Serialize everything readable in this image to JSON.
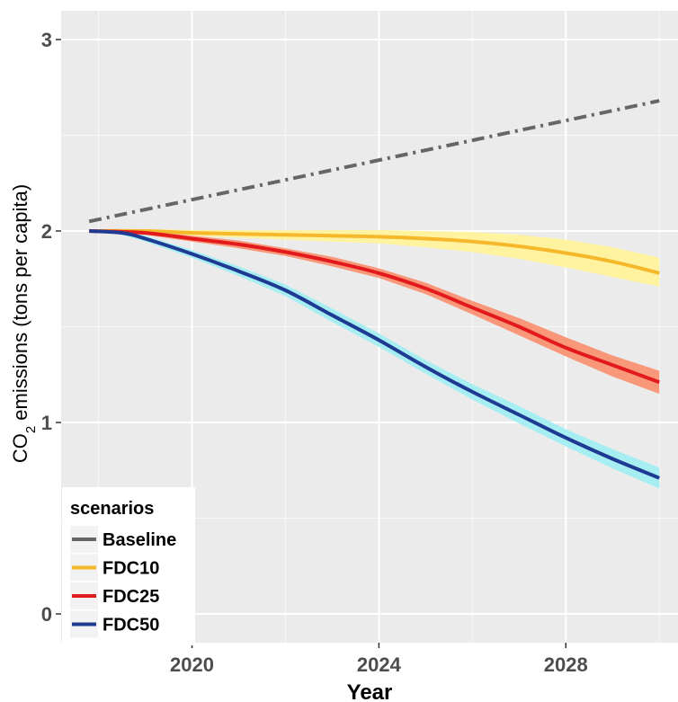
{
  "chart_data": {
    "type": "line",
    "xlabel": "Year",
    "ylabel_prefix": "CO",
    "ylabel_sub": "2",
    "ylabel_suffix": " emissions (tons per capita)",
    "xlim": [
      2017.2,
      2030.4
    ],
    "ylim": [
      -0.15,
      3.15
    ],
    "x_ticks": [
      2020,
      2024,
      2028
    ],
    "x_tick_labels": [
      "2020",
      "2024",
      "2028"
    ],
    "y_ticks": [
      0,
      1,
      2,
      3
    ],
    "y_tick_labels": [
      "0",
      "1",
      "2",
      "3"
    ],
    "grid": true,
    "legend": {
      "title": "scenarios",
      "position": "bottom-left",
      "entries": [
        "Baseline",
        "FDC10",
        "FDC25",
        "FDC50"
      ]
    },
    "series": [
      {
        "name": "Baseline",
        "color": "#666666",
        "line_style": "dot-dash",
        "x": [
          2017.8,
          2030
        ],
        "y": [
          2.05,
          2.68
        ]
      },
      {
        "name": "FDC10",
        "color": "#f5b82a",
        "band_color": "#fff3a0",
        "line_style": "solid",
        "x": [
          2017.8,
          2019,
          2020,
          2021,
          2022,
          2023,
          2024,
          2025,
          2026,
          2027,
          2028,
          2029,
          2030
        ],
        "y": [
          2.0,
          2.0,
          1.99,
          1.985,
          1.98,
          1.975,
          1.97,
          1.96,
          1.945,
          1.92,
          1.885,
          1.84,
          1.78
        ],
        "lower": [
          2.0,
          1.99,
          1.975,
          1.965,
          1.955,
          1.945,
          1.935,
          1.915,
          1.89,
          1.855,
          1.81,
          1.76,
          1.71
        ],
        "upper": [
          2.0,
          2.01,
          2.005,
          2.005,
          2.005,
          2.005,
          2.005,
          2.0,
          1.995,
          1.98,
          1.955,
          1.915,
          1.86
        ]
      },
      {
        "name": "FDC25",
        "color": "#e31a1c",
        "band_color": "#f9977a",
        "line_style": "solid",
        "x": [
          2017.8,
          2019,
          2020,
          2021,
          2022,
          2023,
          2024,
          2025,
          2026,
          2027,
          2028,
          2029,
          2030
        ],
        "y": [
          2.0,
          1.99,
          1.96,
          1.93,
          1.89,
          1.84,
          1.78,
          1.7,
          1.6,
          1.5,
          1.39,
          1.3,
          1.21
        ],
        "lower": [
          2.0,
          1.98,
          1.945,
          1.91,
          1.87,
          1.815,
          1.755,
          1.67,
          1.565,
          1.455,
          1.345,
          1.24,
          1.15
        ],
        "upper": [
          2.0,
          2.0,
          1.975,
          1.95,
          1.91,
          1.865,
          1.805,
          1.73,
          1.635,
          1.545,
          1.445,
          1.35,
          1.27
        ]
      },
      {
        "name": "FDC50",
        "color": "#1f3a93",
        "band_color": "#a6eef2",
        "line_style": "solid",
        "x": [
          2017.8,
          2018.5,
          2019,
          2020,
          2021,
          2022,
          2023,
          2024,
          2025,
          2026,
          2027,
          2028,
          2029,
          2030
        ],
        "y": [
          2.0,
          1.99,
          1.96,
          1.88,
          1.79,
          1.69,
          1.56,
          1.43,
          1.29,
          1.16,
          1.04,
          0.92,
          0.81,
          0.71
        ],
        "lower": [
          2.0,
          1.98,
          1.945,
          1.86,
          1.765,
          1.66,
          1.525,
          1.395,
          1.255,
          1.12,
          0.995,
          0.875,
          0.76,
          0.655
        ],
        "upper": [
          2.0,
          2.0,
          1.975,
          1.9,
          1.815,
          1.72,
          1.595,
          1.465,
          1.325,
          1.2,
          1.085,
          0.965,
          0.86,
          0.765
        ]
      }
    ]
  }
}
